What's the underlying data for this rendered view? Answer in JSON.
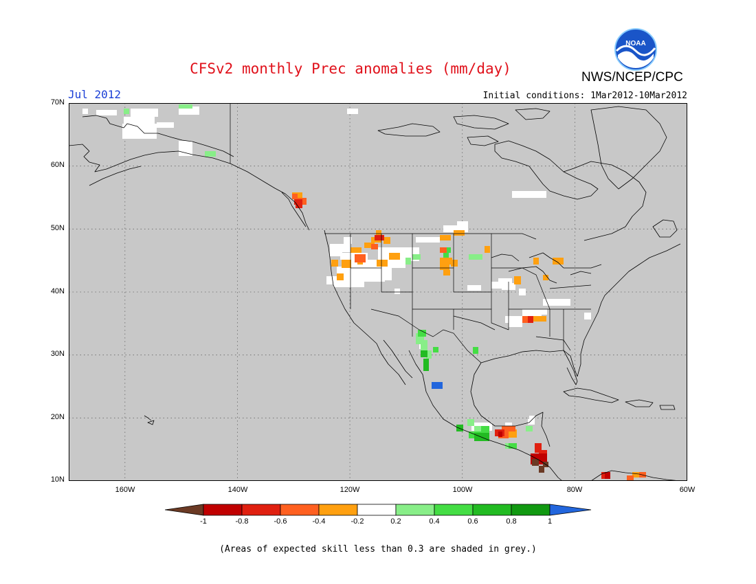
{
  "title": "CFSv2 monthly Prec anomalies (mm/day)",
  "organization": "NWS/NCEP/CPC",
  "logo_text": "NOAA",
  "forecast_month": "Jul 2012",
  "initial_conditions": "Initial conditions: 1Mar2012-10Mar2012",
  "footnote": "(Areas of expected skill less than 0.3 are shaded in grey.)",
  "map": {
    "region": "North America",
    "lat_range": [
      10,
      70
    ],
    "lon_range": [
      -170,
      -60
    ],
    "lat_labels": [
      "70N",
      "60N",
      "50N",
      "40N",
      "30N",
      "20N",
      "10N"
    ],
    "lon_labels": [
      "160W",
      "140W",
      "120W",
      "100W",
      "80W",
      "60W"
    ],
    "grid": "dotted",
    "background_color": "#c8c8c8"
  },
  "colorbar": {
    "labels": [
      "-1",
      "-0.8",
      "-0.6",
      "-0.4",
      "-0.2",
      "0.2",
      "0.4",
      "0.6",
      "0.8",
      "1"
    ],
    "colors": [
      "#6b3a24",
      "#c00000",
      "#e02010",
      "#ff6020",
      "#ffa010",
      "#ffffff",
      "#88ee88",
      "#44dd44",
      "#22bb22",
      "#119911",
      "#2266dd"
    ]
  }
}
